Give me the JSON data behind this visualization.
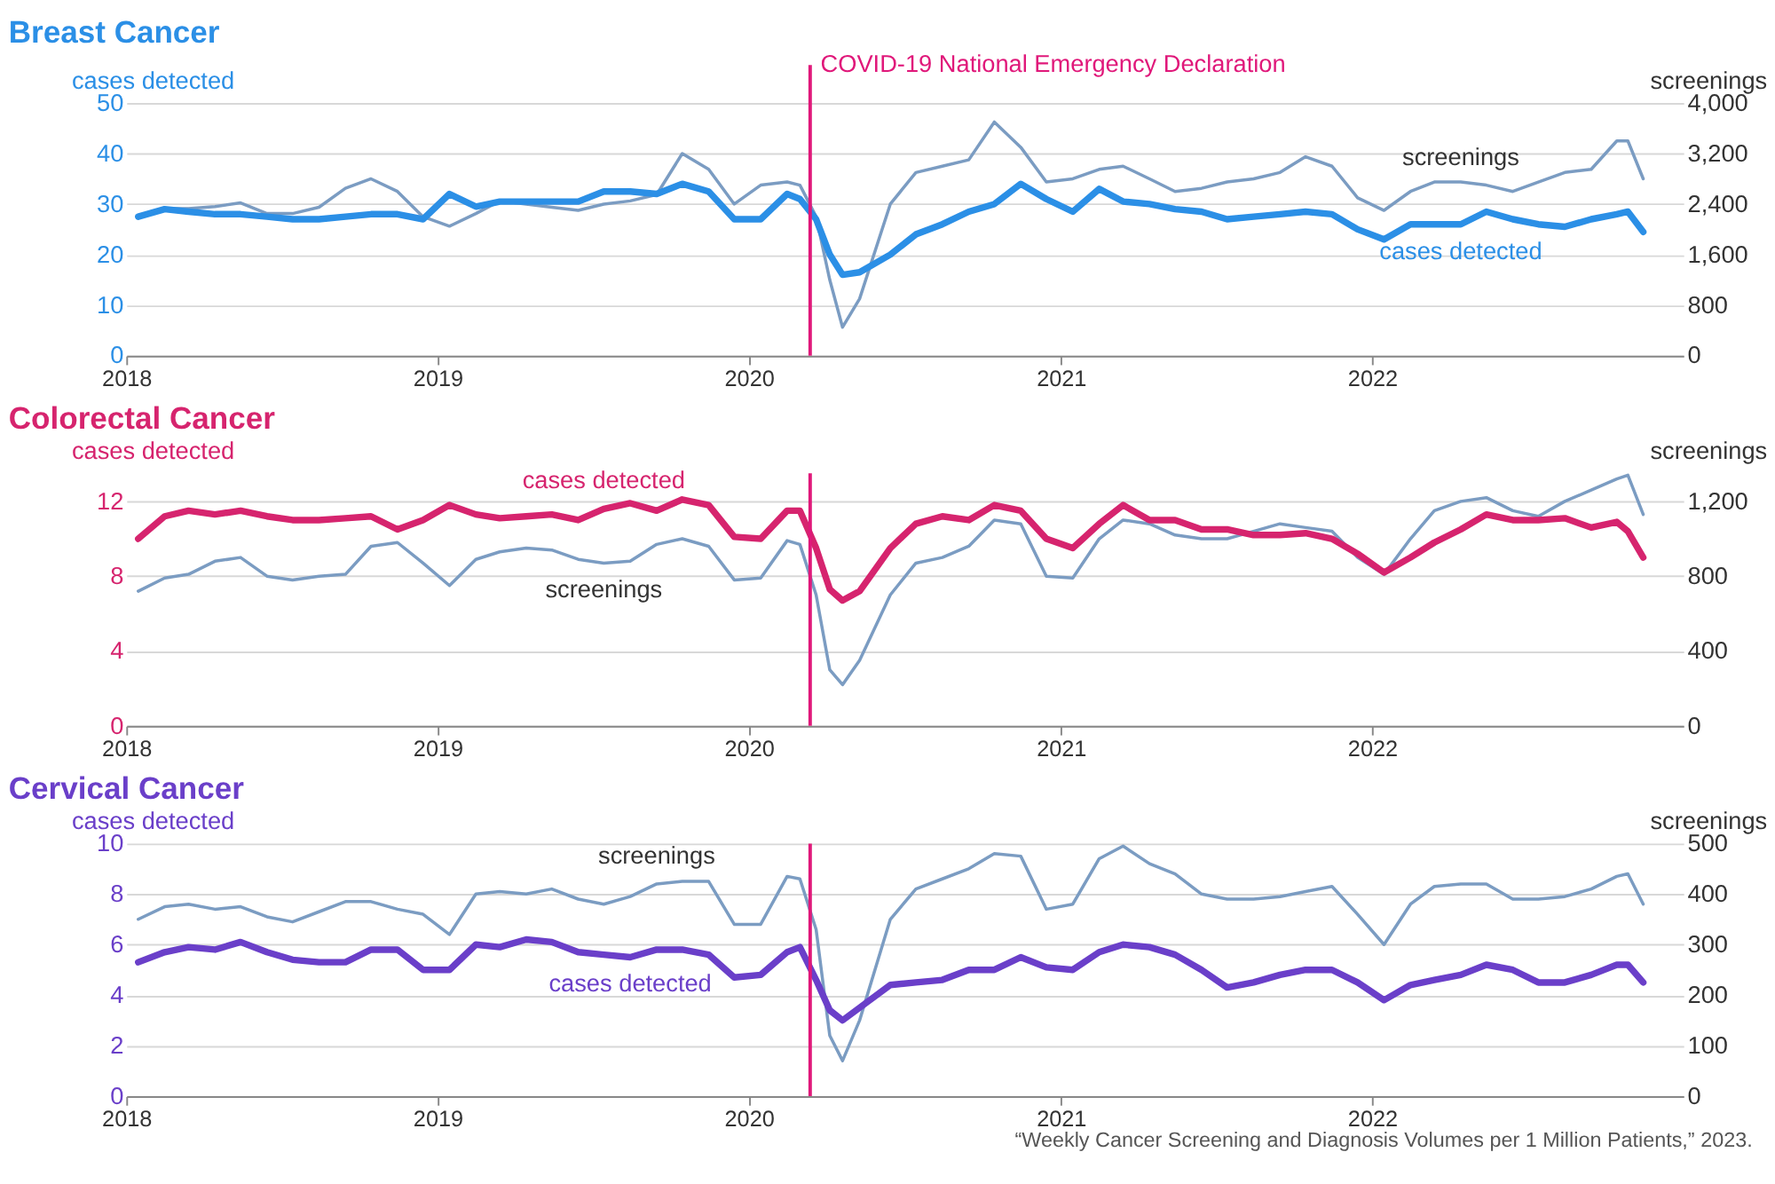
{
  "chart_data": [
    {
      "type": "line",
      "title": "Breast Cancer",
      "ylabel": "cases detected",
      "y2label": "screenings",
      "x": [
        "2018-01-15",
        "2018-02-15",
        "2018-03-15",
        "2018-04-15",
        "2018-05-15",
        "2018-06-15",
        "2018-07-15",
        "2018-08-15",
        "2018-09-15",
        "2018-10-15",
        "2018-11-15",
        "2018-12-15",
        "2019-01-15",
        "2019-02-15",
        "2019-03-15",
        "2019-04-15",
        "2019-05-15",
        "2019-06-15",
        "2019-07-15",
        "2019-08-15",
        "2019-09-15",
        "2019-10-15",
        "2019-11-15",
        "2019-12-15",
        "2020-01-15",
        "2020-02-15",
        "2020-03-01",
        "2020-03-20",
        "2020-04-05",
        "2020-04-20",
        "2020-05-10",
        "2020-06-15",
        "2020-07-15",
        "2020-08-15",
        "2020-09-15",
        "2020-10-15",
        "2020-11-15",
        "2020-12-15",
        "2021-01-15",
        "2021-02-15",
        "2021-03-15",
        "2021-04-15",
        "2021-05-15",
        "2021-06-15",
        "2021-07-15",
        "2021-08-15",
        "2021-09-15",
        "2021-10-15",
        "2021-11-15",
        "2021-12-15",
        "2022-01-15",
        "2022-02-15",
        "2022-03-15",
        "2022-04-15",
        "2022-05-15",
        "2022-06-15",
        "2022-07-15",
        "2022-08-15",
        "2022-09-15",
        "2022-10-15",
        "2022-10-28",
        "2022-11-15"
      ],
      "xlim": [
        "2018-01-01",
        "2023-01-01"
      ],
      "xticks": [
        "2018",
        "2019",
        "2020",
        "2021",
        "2022"
      ],
      "ylim": [
        0,
        50
      ],
      "yticks": [
        0,
        10,
        20,
        30,
        40,
        50
      ],
      "y2lim": [
        0,
        4000
      ],
      "y2ticks": [
        0,
        800,
        {
          "value": 1600,
          "label": "1,600"
        },
        {
          "value": 2400,
          "label": "2,400"
        },
        {
          "value": 3200,
          "label": "3,200"
        },
        {
          "value": 4000,
          "label": "4,000"
        }
      ],
      "grid": "y",
      "series": [
        {
          "name": "screenings",
          "color": "#7b9cc2",
          "axis": "y2",
          "values": [
            2200,
            2330,
            2330,
            2360,
            2420,
            2250,
            2250,
            2350,
            2650,
            2800,
            2600,
            2200,
            2050,
            2250,
            2450,
            2400,
            2350,
            2300,
            2400,
            2450,
            2550,
            3200,
            2950,
            2400,
            2700,
            2750,
            2700,
            2200,
            1200,
            450,
            900,
            2400,
            2900,
            3000,
            3100,
            3700,
            3300,
            2750,
            2800,
            2950,
            3000,
            2800,
            2600,
            2650,
            2750,
            2800,
            2900,
            3150,
            3000,
            2500,
            2300,
            2600,
            2750,
            2750,
            2700,
            2600,
            2750,
            2900,
            2950,
            3400,
            3400,
            2800
          ]
        },
        {
          "name": "cases detected",
          "color": "#2b8fe6",
          "values": [
            27.5,
            29,
            28.5,
            28,
            28,
            27.5,
            27,
            27,
            27.5,
            28,
            28,
            27,
            32,
            29.5,
            30.5,
            30.5,
            30.5,
            30.5,
            32.5,
            32.5,
            32,
            34,
            32.5,
            27,
            27,
            32,
            31,
            27,
            20,
            16,
            16.5,
            20,
            24,
            26,
            28.5,
            30,
            34,
            31,
            28.5,
            33,
            30.5,
            30,
            29,
            28.5,
            27,
            27.5,
            28,
            28.5,
            28,
            25,
            23,
            26,
            26,
            26,
            28.5,
            27,
            26,
            25.5,
            27,
            28,
            28.5,
            24.5
          ]
        }
      ],
      "ref_lines": [
        {
          "axis": "x",
          "value": "2020-03-13",
          "label": "COVID-19 National Emergency Declaration",
          "color": "#e0187a"
        }
      ]
    },
    {
      "type": "line",
      "title": "Colorectal Cancer",
      "ylabel": "cases detected",
      "y2label": "screenings",
      "x": [
        "2018-01-15",
        "2018-02-15",
        "2018-03-15",
        "2018-04-15",
        "2018-05-15",
        "2018-06-15",
        "2018-07-15",
        "2018-08-15",
        "2018-09-15",
        "2018-10-15",
        "2018-11-15",
        "2018-12-15",
        "2019-01-15",
        "2019-02-15",
        "2019-03-15",
        "2019-04-15",
        "2019-05-15",
        "2019-06-15",
        "2019-07-15",
        "2019-08-15",
        "2019-09-15",
        "2019-10-15",
        "2019-11-15",
        "2019-12-15",
        "2020-01-15",
        "2020-02-15",
        "2020-03-01",
        "2020-03-20",
        "2020-04-05",
        "2020-04-20",
        "2020-05-10",
        "2020-06-15",
        "2020-07-15",
        "2020-08-15",
        "2020-09-15",
        "2020-10-15",
        "2020-11-15",
        "2020-12-15",
        "2021-01-15",
        "2021-02-15",
        "2021-03-15",
        "2021-04-15",
        "2021-05-15",
        "2021-06-15",
        "2021-07-15",
        "2021-08-15",
        "2021-09-15",
        "2021-10-15",
        "2021-11-15",
        "2021-12-15",
        "2022-01-15",
        "2022-02-15",
        "2022-03-15",
        "2022-04-15",
        "2022-05-15",
        "2022-06-15",
        "2022-07-15",
        "2022-08-15",
        "2022-09-15",
        "2022-10-15",
        "2022-10-28",
        "2022-11-15"
      ],
      "xlim": [
        "2018-01-01",
        "2023-01-01"
      ],
      "xticks": [
        "2018",
        "2019",
        "2020",
        "2021",
        "2022"
      ],
      "ylim": [
        0,
        13.5
      ],
      "yticks": [
        0,
        4,
        8,
        12
      ],
      "y2lim": [
        0,
        1350
      ],
      "y2ticks": [
        0,
        400,
        800,
        {
          "value": 1200,
          "label": "1,200"
        }
      ],
      "grid": "y",
      "series": [
        {
          "name": "screenings",
          "color": "#7b9cc2",
          "axis": "y2",
          "values": [
            720,
            790,
            810,
            880,
            900,
            800,
            780,
            800,
            810,
            960,
            980,
            870,
            750,
            890,
            930,
            950,
            940,
            890,
            870,
            880,
            970,
            1000,
            960,
            780,
            790,
            990,
            970,
            700,
            300,
            220,
            350,
            700,
            870,
            900,
            960,
            1100,
            1080,
            800,
            790,
            1000,
            1100,
            1080,
            1020,
            1000,
            1000,
            1040,
            1080,
            1060,
            1040,
            900,
            810,
            1000,
            1150,
            1200,
            1220,
            1150,
            1120,
            1200,
            1260,
            1320,
            1340,
            1130
          ]
        },
        {
          "name": "cases detected",
          "color": "#d6246e",
          "values": [
            10,
            11.2,
            11.5,
            11.3,
            11.5,
            11.2,
            11,
            11,
            11.1,
            11.2,
            10.5,
            11,
            11.8,
            11.3,
            11.1,
            11.2,
            11.3,
            11,
            11.6,
            11.9,
            11.5,
            12.1,
            11.8,
            10.1,
            10,
            11.5,
            11.5,
            9.5,
            7.3,
            6.7,
            7.2,
            9.5,
            10.8,
            11.2,
            11,
            11.8,
            11.5,
            10,
            9.5,
            10.8,
            11.8,
            11,
            11,
            10.5,
            10.5,
            10.2,
            10.2,
            10.3,
            10,
            9.2,
            8.2,
            9,
            9.8,
            10.5,
            11.3,
            11,
            11,
            11.1,
            10.6,
            10.9,
            10.4,
            9
          ]
        }
      ],
      "ref_lines": [
        {
          "axis": "x",
          "value": "2020-03-13",
          "color": "#e0187a"
        }
      ]
    },
    {
      "type": "line",
      "title": "Cervical Cancer",
      "ylabel": "cases detected",
      "y2label": "screenings",
      "x": [
        "2018-01-15",
        "2018-02-15",
        "2018-03-15",
        "2018-04-15",
        "2018-05-15",
        "2018-06-15",
        "2018-07-15",
        "2018-08-15",
        "2018-09-15",
        "2018-10-15",
        "2018-11-15",
        "2018-12-15",
        "2019-01-15",
        "2019-02-15",
        "2019-03-15",
        "2019-04-15",
        "2019-05-15",
        "2019-06-15",
        "2019-07-15",
        "2019-08-15",
        "2019-09-15",
        "2019-10-15",
        "2019-11-15",
        "2019-12-15",
        "2020-01-15",
        "2020-02-15",
        "2020-03-01",
        "2020-03-20",
        "2020-04-05",
        "2020-04-20",
        "2020-05-10",
        "2020-06-15",
        "2020-07-15",
        "2020-08-15",
        "2020-09-15",
        "2020-10-15",
        "2020-11-15",
        "2020-12-15",
        "2021-01-15",
        "2021-02-15",
        "2021-03-15",
        "2021-04-15",
        "2021-05-15",
        "2021-06-15",
        "2021-07-15",
        "2021-08-15",
        "2021-09-15",
        "2021-10-15",
        "2021-11-15",
        "2021-12-15",
        "2022-01-15",
        "2022-02-15",
        "2022-03-15",
        "2022-04-15",
        "2022-05-15",
        "2022-06-15",
        "2022-07-15",
        "2022-08-15",
        "2022-09-15",
        "2022-10-15",
        "2022-10-28",
        "2022-11-15"
      ],
      "xlim": [
        "2018-01-01",
        "2023-01-01"
      ],
      "xticks": [
        "2018",
        "2019",
        "2020",
        "2021",
        "2022"
      ],
      "ylim": [
        0,
        10
      ],
      "yticks": [
        0,
        2,
        4,
        6,
        8,
        10
      ],
      "y2lim": [
        0,
        500
      ],
      "y2ticks": [
        0,
        100,
        200,
        300,
        400,
        500
      ],
      "grid": "y",
      "series": [
        {
          "name": "screenings",
          "color": "#7b9cc2",
          "axis": "y2",
          "values": [
            350,
            375,
            380,
            370,
            375,
            355,
            345,
            365,
            385,
            385,
            370,
            360,
            320,
            400,
            405,
            400,
            410,
            390,
            380,
            395,
            420,
            425,
            425,
            340,
            340,
            435,
            430,
            330,
            120,
            70,
            150,
            350,
            410,
            430,
            450,
            480,
            475,
            370,
            380,
            470,
            495,
            460,
            440,
            400,
            390,
            390,
            395,
            405,
            415,
            360,
            300,
            380,
            415,
            420,
            420,
            390,
            390,
            395,
            410,
            435,
            440,
            380
          ]
        },
        {
          "name": "cases detected",
          "color": "#6a3fc9",
          "values": [
            5.3,
            5.7,
            5.9,
            5.8,
            6.1,
            5.7,
            5.4,
            5.3,
            5.3,
            5.8,
            5.8,
            5,
            5,
            6,
            5.9,
            6.2,
            6.1,
            5.7,
            5.6,
            5.5,
            5.8,
            5.8,
            5.6,
            4.7,
            4.8,
            5.7,
            5.9,
            4.6,
            3.4,
            3,
            3.5,
            4.4,
            4.5,
            4.6,
            5,
            5,
            5.5,
            5.1,
            5,
            5.7,
            6,
            5.9,
            5.6,
            5,
            4.3,
            4.5,
            4.8,
            5,
            5,
            4.5,
            3.8,
            4.4,
            4.6,
            4.8,
            5.2,
            5,
            4.5,
            4.5,
            4.8,
            5.2,
            5.2,
            4.5
          ]
        }
      ],
      "annotations": [
        "“Weekly Cancer Screening and Diagnosis Volumes per 1 Million Patients,” 2023."
      ],
      "ref_lines": [
        {
          "axis": "x",
          "value": "2020-03-13",
          "color": "#e0187a"
        }
      ]
    }
  ]
}
